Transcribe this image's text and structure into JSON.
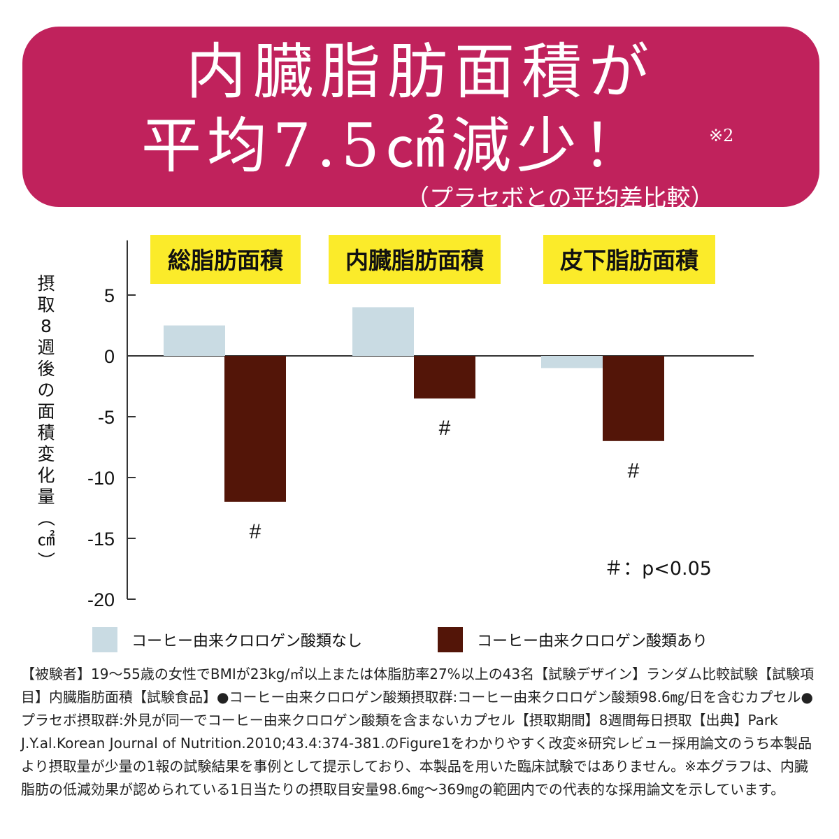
{
  "header": {
    "line1": "内臓脂肪面積が",
    "line2": "平均7.5㎠減少！",
    "footnote_mark": "※2",
    "subtitle": "（プラセボとの平均差比較）",
    "color": "#c0225c"
  },
  "chart_data": {
    "type": "bar",
    "categories": [
      "総脂肪面積",
      "内臓脂肪面積",
      "皮下脂肪面積"
    ],
    "category_label_bg": "#fbeb2a",
    "series": [
      {
        "name": "コーヒー由来クロロゲン酸類なし",
        "values": [
          2.5,
          4,
          -1
        ],
        "color": "#c9dbe3"
      },
      {
        "name": "コーヒー由来クロロゲン酸類あり",
        "values": [
          -12,
          -3.5,
          -7
        ],
        "color": "#531508"
      }
    ],
    "significance": [
      {
        "category": 0,
        "series": 1,
        "label": "#"
      },
      {
        "category": 1,
        "series": 1,
        "label": "#"
      },
      {
        "category": 2,
        "series": 1,
        "label": "#"
      }
    ],
    "ylabel": "摂取8週後の面積変化量（㎠）",
    "yticks": [
      5,
      0,
      -5,
      -10,
      -15,
      -20
    ],
    "ylim": [
      -20,
      9.5
    ],
    "note": "＃：p<0.05",
    "legend_position": "bottom"
  },
  "methodology": "【被験者】19～55歳の女性でBMIが23kg/㎡以上または体脂肪率27%以上の43名【試験デザイン】ランダム比較試験【試験項目】内臓脂肪面積【試験食品】●コーヒー由来クロロゲン酸類摂取群:コーヒー由来クロロゲン酸類98.6㎎/日を含むカプセル●プラセボ摂取群:外見が同一でコーヒー由来クロロゲン酸類を含まないカプセル【摂取期間】8週間毎日摂取【出典】Park J.Y.al.Korean Journal of Nutrition.2010;43.4:374-381.のFigure1をわかりやすく改変※研究レビュー採用論文のうち本製品より摂取量が少量の1報の試験結果を事例として提示しており、本製品を用いた臨床試験ではありません。※本グラフは、内臓脂肪の低減効果が認められている1日当たりの摂取目安量98.6㎎～369㎎の範囲内での代表的な採用論文を示しています。"
}
